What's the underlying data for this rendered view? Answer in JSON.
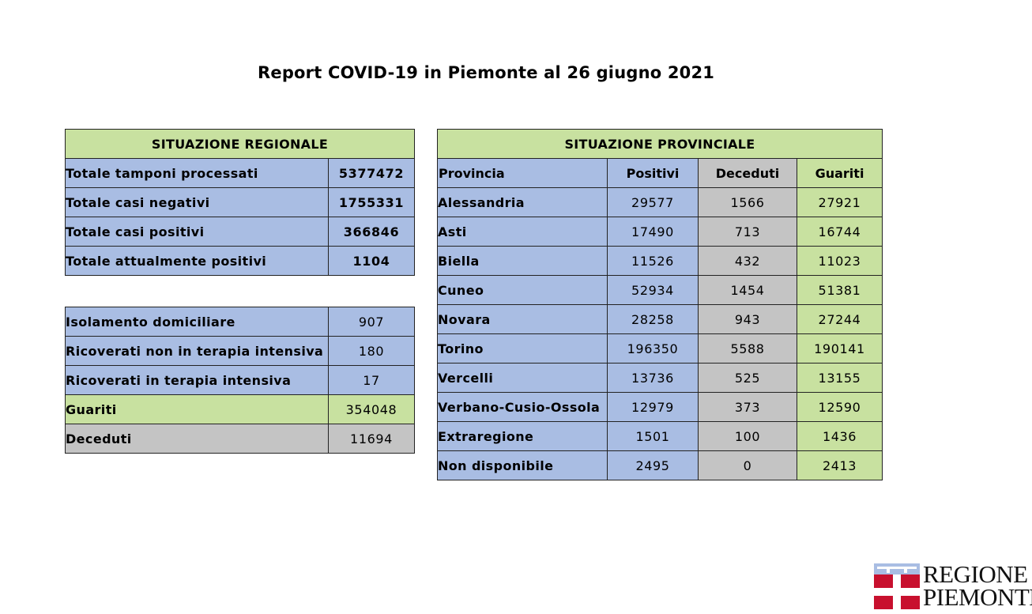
{
  "title": "Report COVID-19 in Piemonte al 26 giugno 2021",
  "colors": {
    "header_green": "#c8e1a0",
    "blue": "#a9bde3",
    "gray": "#c4c4c4",
    "green": "#c8e1a0",
    "logo_red": "#c8102e"
  },
  "regional": {
    "heading": "SITUAZIONE REGIONALE",
    "summary": [
      {
        "label": "Totale tamponi processati",
        "value": "5377472"
      },
      {
        "label": "Totale casi negativi",
        "value": "1755331"
      },
      {
        "label": "Totale casi positivi",
        "value": "366846"
      },
      {
        "label": "Totale attualmente positivi",
        "value": "1104"
      }
    ],
    "details": [
      {
        "label": "Isolamento domiciliare",
        "value": "907"
      },
      {
        "label": "Ricoverati non in terapia intensiva",
        "value": "180"
      },
      {
        "label": "Ricoverati in terapia intensiva",
        "value": "17"
      },
      {
        "label": "Guariti",
        "value": "354048"
      },
      {
        "label": "Deceduti",
        "value": "11694"
      }
    ]
  },
  "provincial": {
    "heading": "SITUAZIONE PROVINCIALE",
    "columns": [
      "Provincia",
      "Positivi",
      "Deceduti",
      "Guariti"
    ],
    "rows": [
      [
        "Alessandria",
        "29577",
        "1566",
        "27921"
      ],
      [
        "Asti",
        "17490",
        "713",
        "16744"
      ],
      [
        "Biella",
        "11526",
        "432",
        "11023"
      ],
      [
        "Cuneo",
        "52934",
        "1454",
        "51381"
      ],
      [
        "Novara",
        "28258",
        "943",
        "27244"
      ],
      [
        "Torino",
        "196350",
        "5588",
        "190141"
      ],
      [
        "Vercelli",
        "13736",
        "525",
        "13155"
      ],
      [
        "Verbano-Cusio-Ossola",
        "12979",
        "373",
        "12590"
      ],
      [
        "Extraregione",
        "1501",
        "100",
        "1436"
      ],
      [
        "Non disponibile",
        "2495",
        "0",
        "2413"
      ]
    ]
  },
  "logo": {
    "line1": "REGIONE",
    "line2": "PIEMONTE"
  }
}
